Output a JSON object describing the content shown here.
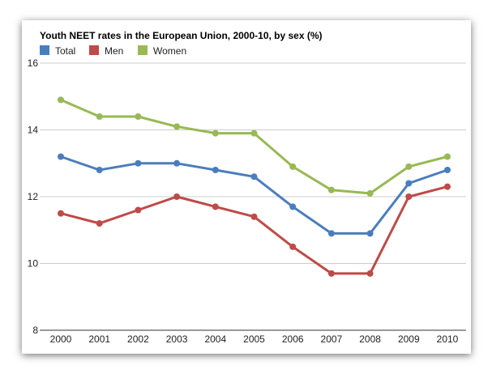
{
  "chart_data": {
    "type": "line",
    "title": "Youth NEET rates in the European Union, 2000-10, by sex (%)",
    "xlabel": "",
    "ylabel": "",
    "categories": [
      "2000",
      "2001",
      "2002",
      "2003",
      "2004",
      "2005",
      "2006",
      "2007",
      "2008",
      "2009",
      "2010"
    ],
    "ylim": [
      8,
      16
    ],
    "yticks": [
      "8",
      "10",
      "12",
      "14",
      "16"
    ],
    "grid": true,
    "legend_position": "top-left",
    "series": [
      {
        "name": "Total",
        "color": "#4a7ebb",
        "values": [
          13.2,
          12.8,
          13.0,
          13.0,
          12.8,
          12.6,
          11.7,
          10.9,
          10.9,
          12.4,
          12.8
        ]
      },
      {
        "name": "Men",
        "color": "#be4b48",
        "values": [
          11.5,
          11.2,
          11.6,
          12.0,
          11.7,
          11.4,
          10.5,
          9.7,
          9.7,
          12.0,
          12.3
        ]
      },
      {
        "name": "Women",
        "color": "#98b954",
        "values": [
          14.9,
          14.4,
          14.4,
          14.1,
          13.9,
          13.9,
          12.9,
          12.2,
          12.1,
          12.9,
          13.2
        ]
      }
    ]
  }
}
